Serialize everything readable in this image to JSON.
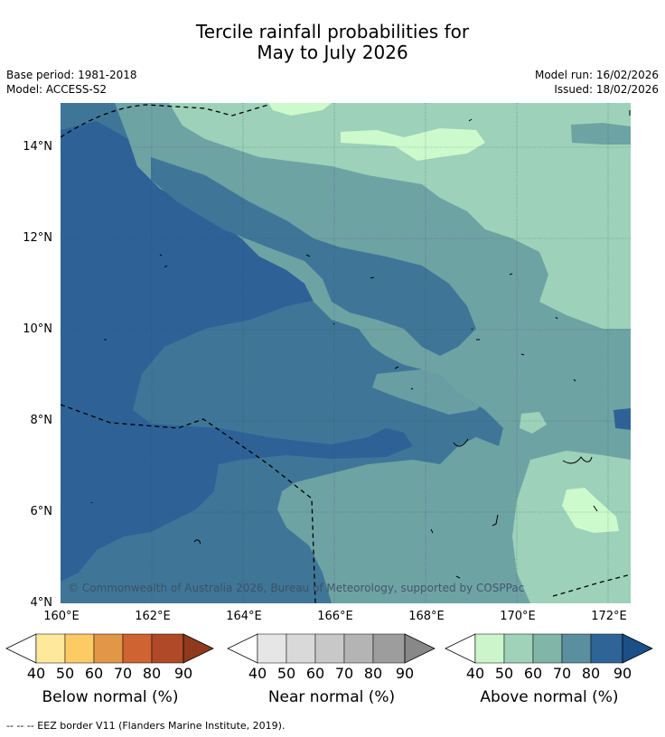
{
  "title_line1": "Tercile rainfall probabilities for",
  "title_line2": "May to July 2026",
  "base_period": "Base period: 1981-2018",
  "model": "Model: ACCESS-S2",
  "model_run": "Model run: 16/02/2026",
  "issued": "Issued: 18/02/2026",
  "copyright": "© Commonwealth of Australia 2026, Bureau of Meteorology, supported by COSPPac",
  "lat_labels": [
    "14°N",
    "12°N",
    "10°N",
    "8°N",
    "6°N",
    "4°N"
  ],
  "lon_labels": [
    "160°E",
    "162°E",
    "164°E",
    "166°E",
    "168°E",
    "170°E",
    "172°E"
  ],
  "colorbars": [
    {
      "title": "Below normal (%)",
      "ticks": [
        "40",
        "50",
        "60",
        "70",
        "80",
        "90"
      ],
      "colors": [
        "#ffffff",
        "#fde89c",
        "#fccb63",
        "#e19746",
        "#cf6331",
        "#b04928",
        "#8f3a1c"
      ]
    },
    {
      "title": "Near normal (%)",
      "ticks": [
        "40",
        "50",
        "60",
        "70",
        "80",
        "90"
      ],
      "colors": [
        "#ffffff",
        "#e6e6e6",
        "#d9d9d9",
        "#c8c8c8",
        "#b4b4b4",
        "#9d9d9d",
        "#888888"
      ]
    },
    {
      "title": "Above normal (%)",
      "ticks": [
        "40",
        "50",
        "60",
        "70",
        "80",
        "90"
      ],
      "colors": [
        "#ffffff",
        "#ccf5cc",
        "#9fd2b9",
        "#80b5a8",
        "#5a8f9f",
        "#2f6497",
        "#1b4f88"
      ]
    }
  ],
  "footnote": "--  --  -- EEZ border V11 (Flanders Marine Institute, 2019).",
  "map_colors": {
    "c50": "#ccfacc",
    "c60": "#9dd1b9",
    "c70": "#6ea3a4",
    "c80": "#3f7698",
    "c90": "#2e6297"
  }
}
